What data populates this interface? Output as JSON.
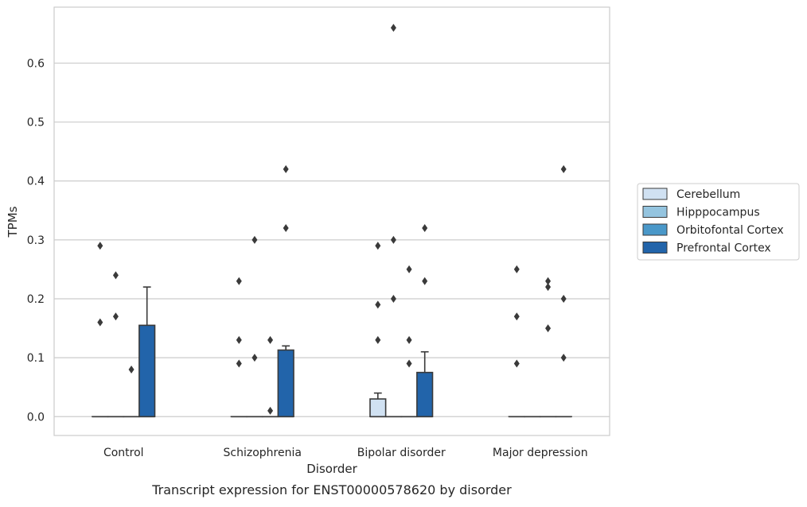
{
  "chart_data": {
    "type": "box",
    "xlabel": "Disorder",
    "ylabel": "TPMs",
    "caption": "Transcript expression for ENST00000578620 by disorder",
    "categories": [
      "Control",
      "Schizophrenia",
      "Bipolar disorder",
      "Major depression"
    ],
    "ylim": [
      -0.032,
      0.695
    ],
    "yticks": [
      0.0,
      0.1,
      0.2,
      0.3,
      0.4,
      0.5,
      0.6
    ],
    "ytick_labels": [
      "0.0",
      "0.1",
      "0.2",
      "0.3",
      "0.4",
      "0.5",
      "0.6"
    ],
    "grid": true,
    "legend_position": "right",
    "series": [
      {
        "name": "Cerebellum",
        "color": "#d0e1f2",
        "boxes": [
          {
            "q1": 0,
            "median": 0,
            "q3": 0,
            "whisker_low": 0,
            "whisker_high": 0,
            "outliers": [
              0.16,
              0.29
            ]
          },
          {
            "q1": 0,
            "median": 0,
            "q3": 0,
            "whisker_low": 0,
            "whisker_high": 0,
            "outliers": [
              0.09,
              0.13,
              0.23
            ]
          },
          {
            "q1": 0,
            "median": 0,
            "q3": 0.03,
            "whisker_low": 0,
            "whisker_high": 0.04,
            "outliers": [
              0.13,
              0.19,
              0.29
            ]
          },
          {
            "q1": 0,
            "median": 0,
            "q3": 0,
            "whisker_low": 0,
            "whisker_high": 0,
            "outliers": [
              0.09,
              0.17,
              0.25
            ]
          }
        ]
      },
      {
        "name": "Hipppocampus",
        "color": "#94c4df",
        "boxes": [
          {
            "q1": 0,
            "median": 0,
            "q3": 0,
            "whisker_low": 0,
            "whisker_high": 0,
            "outliers": [
              0.17,
              0.24
            ]
          },
          {
            "q1": 0,
            "median": 0,
            "q3": 0,
            "whisker_low": 0,
            "whisker_high": 0,
            "outliers": [
              0.1,
              0.3
            ]
          },
          {
            "q1": 0,
            "median": 0,
            "q3": 0,
            "whisker_low": 0,
            "whisker_high": 0,
            "outliers": [
              0.2,
              0.3,
              0.66
            ]
          },
          {
            "q1": 0,
            "median": 0,
            "q3": 0,
            "whisker_low": 0,
            "whisker_high": 0,
            "outliers": []
          }
        ]
      },
      {
        "name": "Orbitofontal Cortex",
        "color": "#4a98c9",
        "boxes": [
          {
            "q1": 0,
            "median": 0,
            "q3": 0,
            "whisker_low": 0,
            "whisker_high": 0,
            "outliers": [
              0.08
            ]
          },
          {
            "q1": 0,
            "median": 0,
            "q3": 0,
            "whisker_low": 0,
            "whisker_high": 0,
            "outliers": [
              0.01,
              0.13
            ]
          },
          {
            "q1": 0,
            "median": 0,
            "q3": 0,
            "whisker_low": 0,
            "whisker_high": 0,
            "outliers": [
              0.09,
              0.13,
              0.25
            ]
          },
          {
            "q1": 0,
            "median": 0,
            "q3": 0,
            "whisker_low": 0,
            "whisker_high": 0,
            "outliers": [
              0.15,
              0.22,
              0.23
            ]
          }
        ]
      },
      {
        "name": "Prefrontal Cortex",
        "color": "#2264aa",
        "boxes": [
          {
            "q1": 0,
            "median": 0,
            "q3": 0.155,
            "whisker_low": 0,
            "whisker_high": 0.22,
            "outliers": []
          },
          {
            "q1": 0,
            "median": 0,
            "q3": 0.113,
            "whisker_low": 0,
            "whisker_high": 0.12,
            "outliers": [
              0.32,
              0.42
            ]
          },
          {
            "q1": 0,
            "median": 0,
            "q3": 0.075,
            "whisker_low": 0,
            "whisker_high": 0.11,
            "outliers": [
              0.23,
              0.32
            ]
          },
          {
            "q1": 0,
            "median": 0,
            "q3": 0,
            "whisker_low": 0,
            "whisker_high": 0,
            "outliers": [
              0.1,
              0.2,
              0.42
            ]
          }
        ]
      }
    ]
  }
}
